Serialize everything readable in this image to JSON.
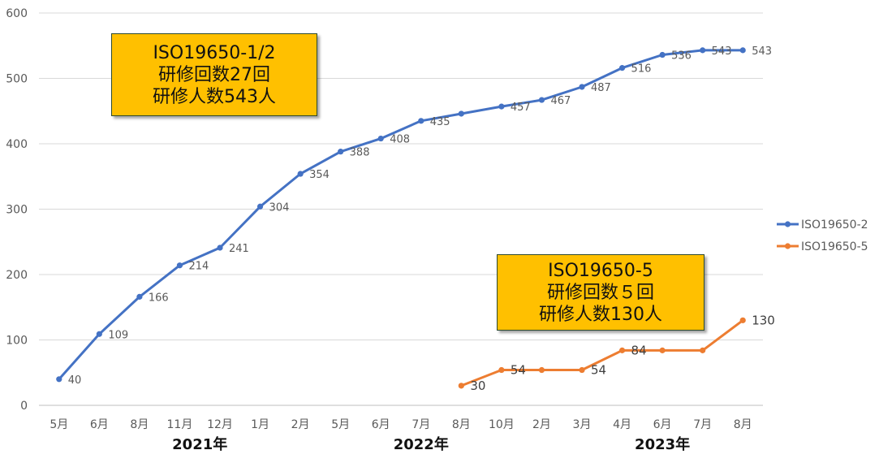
{
  "chart_data": {
    "type": "line",
    "categories": [
      "5月",
      "6月",
      "8月",
      "11月",
      "12月",
      "1月",
      "2月",
      "5月",
      "6月",
      "7月",
      "8月",
      "10月",
      "2月",
      "3月",
      "4月",
      "6月",
      "7月",
      "8月"
    ],
    "year_labels": [
      {
        "label": "2021年"
      },
      {
        "label": "2022年"
      },
      {
        "label": "2023年"
      }
    ],
    "ylim": [
      0,
      600
    ],
    "yticks": [
      0,
      100,
      200,
      300,
      400,
      500,
      600
    ],
    "grid": true,
    "legend_position": "right",
    "series": [
      {
        "name": "ISO19650-2",
        "color": "#4472c4",
        "values": [
          40,
          109,
          166,
          214,
          241,
          304,
          354,
          388,
          408,
          435,
          446,
          457,
          467,
          487,
          516,
          536,
          543,
          543
        ],
        "labels": [
          "40",
          "109",
          "166",
          "214",
          "241",
          "304",
          "354",
          "388",
          "408",
          "435",
          "",
          "457",
          "467",
          "487",
          "516",
          "536",
          "543",
          "543"
        ]
      },
      {
        "name": "ISO19650-5",
        "color": "#ed7d31",
        "values": [
          null,
          null,
          null,
          null,
          null,
          null,
          null,
          null,
          null,
          null,
          30,
          54,
          54,
          54,
          84,
          84,
          84,
          130
        ],
        "labels": [
          "",
          "",
          "",
          "",
          "",
          "",
          "",
          "",
          "",
          "",
          "30",
          "54",
          "",
          "54",
          "84",
          "",
          "",
          "130"
        ]
      }
    ],
    "annotations": [
      {
        "lines": [
          "ISO19650-1/2",
          "研修回数27回",
          "研修人数543人"
        ]
      },
      {
        "lines": [
          "ISO19650-5",
          "研修回数５回",
          "研修人数130人"
        ]
      }
    ]
  }
}
